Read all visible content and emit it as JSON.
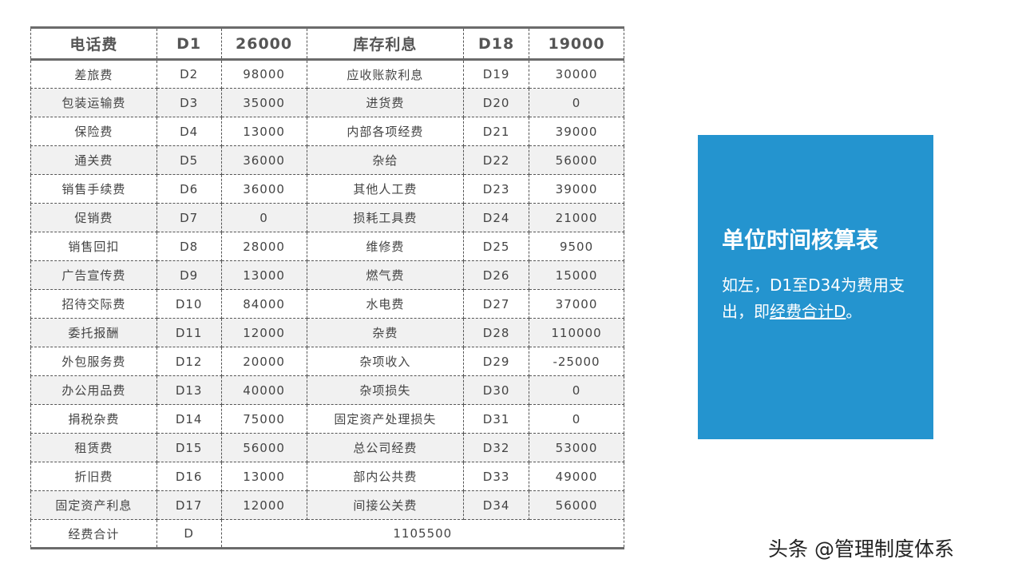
{
  "table": {
    "header": [
      "电话费",
      "D1",
      "26000",
      "库存利息",
      "D18",
      "19000"
    ],
    "rows": [
      [
        "差旅费",
        "D2",
        "98000",
        "应收账款利息",
        "D19",
        "30000"
      ],
      [
        "包装运输费",
        "D3",
        "35000",
        "进货费",
        "D20",
        "0"
      ],
      [
        "保险费",
        "D4",
        "13000",
        "内部各项经费",
        "D21",
        "39000"
      ],
      [
        "通关费",
        "D5",
        "36000",
        "杂给",
        "D22",
        "56000"
      ],
      [
        "销售手续费",
        "D6",
        "36000",
        "其他人工费",
        "D23",
        "39000"
      ],
      [
        "促销费",
        "D7",
        "0",
        "损耗工具费",
        "D24",
        "21000"
      ],
      [
        "销售回扣",
        "D8",
        "28000",
        "维修费",
        "D25",
        "9500"
      ],
      [
        "广告宣传费",
        "D9",
        "13000",
        "燃气费",
        "D26",
        "15000"
      ],
      [
        "招待交际费",
        "D10",
        "84000",
        "水电费",
        "D27",
        "37000"
      ],
      [
        "委托报酬",
        "D11",
        "12000",
        "杂费",
        "D28",
        "110000"
      ],
      [
        "外包服务费",
        "D12",
        "20000",
        "杂项收入",
        "D29",
        "-25000"
      ],
      [
        "办公用品费",
        "D13",
        "40000",
        "杂项损失",
        "D30",
        "0"
      ],
      [
        "捐税杂费",
        "D14",
        "75000",
        "固定资产处理损失",
        "D31",
        "0"
      ],
      [
        "租赁费",
        "D15",
        "56000",
        "总公司经费",
        "D32",
        "53000"
      ],
      [
        "折旧费",
        "D16",
        "13000",
        "部内公共费",
        "D33",
        "49000"
      ],
      [
        "固定资产利息",
        "D17",
        "12000",
        "间接公关费",
        "D34",
        "56000"
      ]
    ],
    "total": {
      "label": "经费合计",
      "code": "D",
      "value": "1105500"
    }
  },
  "panel": {
    "title": "单位时间核算表",
    "text1": "如左，D1至D34为费用支出，即",
    "link": "经费合计D",
    "text2": "。",
    "color": "#2494cf"
  },
  "watermark": "头条 @管理制度体系"
}
